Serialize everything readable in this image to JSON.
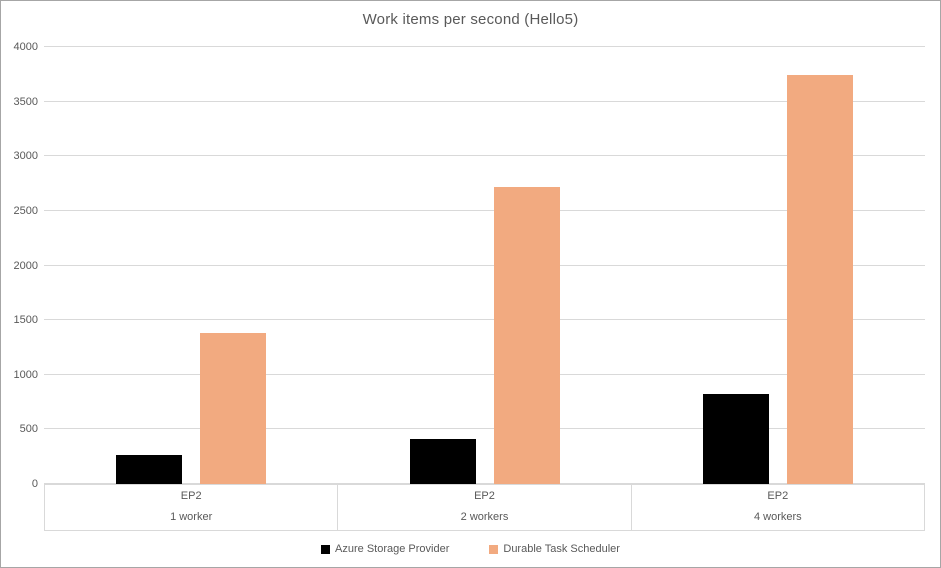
{
  "chart_data": {
    "type": "bar",
    "title": "Work items per second (Hello5)",
    "xlabel": "",
    "ylabel": "",
    "ylim": [
      0,
      4000
    ],
    "ytick_step": 500,
    "grid": true,
    "legend_position": "bottom",
    "categories": [
      {
        "group": "EP2",
        "sub": "1 worker"
      },
      {
        "group": "EP2",
        "sub": "2 workers"
      },
      {
        "group": "EP2",
        "sub": "4 workers"
      }
    ],
    "series": [
      {
        "name": "Azure Storage Provider",
        "color": "#000000",
        "values": [
          265,
          410,
          825
        ]
      },
      {
        "name": "Durable Task Scheduler",
        "color": "#F2AA80",
        "values": [
          1385,
          2720,
          3740
        ]
      }
    ]
  },
  "colors": {
    "gridline": "#d9d9d9",
    "axis_text": "#595959",
    "title_text": "#595959",
    "frame_border": "#a6a6a6",
    "background": "#ffffff"
  }
}
